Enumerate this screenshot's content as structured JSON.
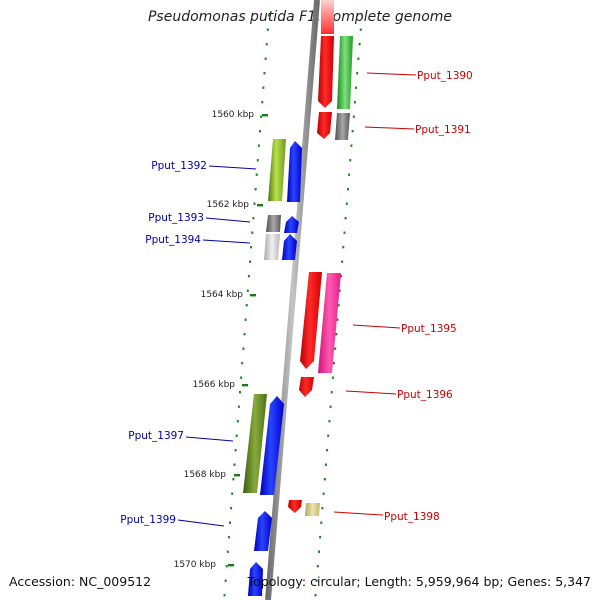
{
  "title": "Pseudomonas putida F1, complete genome",
  "accession": "Accession: NC_009512",
  "topology": "Topology: circular; Length: 5,959,964 bp; Genes: 5,347",
  "scale_labels": [
    "1560 kbp",
    "1562 kbp",
    "1564 kbp",
    "1566 kbp",
    "1568 kbp",
    "1570 kbp"
  ],
  "genes": [
    {
      "label": "Pput_1390",
      "strand": "forward",
      "color": "#cc0000"
    },
    {
      "label": "Pput_1391",
      "strand": "forward",
      "color": "#cc0000"
    },
    {
      "label": "Pput_1392",
      "strand": "reverse",
      "color": "#0000aa"
    },
    {
      "label": "Pput_1393",
      "strand": "reverse",
      "color": "#0000aa"
    },
    {
      "label": "Pput_1394",
      "strand": "reverse",
      "color": "#0000aa"
    },
    {
      "label": "Pput_1395",
      "strand": "forward",
      "color": "#cc0000"
    },
    {
      "label": "Pput_1396",
      "strand": "forward",
      "color": "#cc0000"
    },
    {
      "label": "Pput_1397",
      "strand": "reverse",
      "color": "#0000aa"
    },
    {
      "label": "Pput_1398",
      "strand": "forward",
      "color": "#cc0000"
    },
    {
      "label": "Pput_1399",
      "strand": "reverse",
      "color": "#0000aa"
    }
  ]
}
